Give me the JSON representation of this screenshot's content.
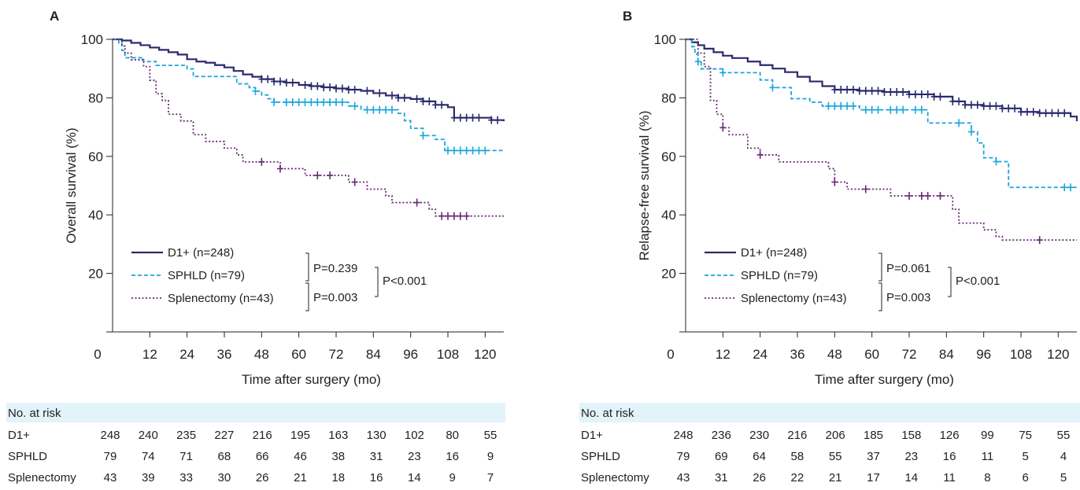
{
  "chart_data": [
    {
      "type": "line",
      "panel_label": "A",
      "xlabel": "Time after surgery (mo)",
      "ylabel": "Overall survival (%)",
      "xlim": [
        0,
        126
      ],
      "ylim": [
        0,
        100
      ],
      "x_ticks": [
        "0",
        "12",
        "24",
        "36",
        "48",
        "60",
        "72",
        "84",
        "96",
        "108",
        "120"
      ],
      "y_ticks": [
        "20",
        "40",
        "60",
        "80",
        "100"
      ],
      "y_tick_values": [
        20,
        40,
        60,
        80,
        100
      ],
      "series": [
        {
          "name": "D1+ (n=248)",
          "color": "#2b2a6e",
          "style": "solid",
          "points": [
            [
              0,
              100
            ],
            [
              3,
              99.6
            ],
            [
              6,
              98.8
            ],
            [
              9,
              98
            ],
            [
              12,
              97.2
            ],
            [
              15,
              96.4
            ],
            [
              18,
              95.6
            ],
            [
              21,
              94.8
            ],
            [
              24,
              93.2
            ],
            [
              27,
              92.4
            ],
            [
              30,
              92
            ],
            [
              33,
              91.2
            ],
            [
              36,
              90.4
            ],
            [
              39,
              89.2
            ],
            [
              42,
              88
            ],
            [
              45,
              87.2
            ],
            [
              48,
              86.4
            ],
            [
              52,
              85.6
            ],
            [
              56,
              85.2
            ],
            [
              60,
              84.4
            ],
            [
              64,
              84
            ],
            [
              68,
              83.6
            ],
            [
              72,
              83.2
            ],
            [
              76,
              82.8
            ],
            [
              80,
              82.4
            ],
            [
              84,
              81.6
            ],
            [
              88,
              80.8
            ],
            [
              92,
              80
            ],
            [
              96,
              79.6
            ],
            [
              100,
              78.8
            ],
            [
              104,
              77.6
            ],
            [
              108,
              76.8
            ],
            [
              110,
              73.2
            ],
            [
              120,
              73.2
            ],
            [
              122,
              72.4
            ],
            [
              126,
              72
            ]
          ],
          "censor_x": [
            48,
            50,
            52,
            54,
            56,
            58,
            62,
            64,
            66,
            68,
            70,
            72,
            74,
            76,
            78,
            82,
            86,
            90,
            92,
            94,
            98,
            100,
            102,
            104,
            106,
            110,
            112,
            114,
            116,
            118,
            122,
            124
          ]
        },
        {
          "name": "SPHLD (n=79)",
          "color": "#1aa5dc",
          "style": "dashed",
          "points": [
            [
              0,
              100
            ],
            [
              2,
              98.7
            ],
            [
              3,
              96.2
            ],
            [
              4,
              93.7
            ],
            [
              10,
              92.4
            ],
            [
              14,
              91.1
            ],
            [
              24,
              89.9
            ],
            [
              26,
              87.3
            ],
            [
              40,
              84.8
            ],
            [
              44,
              83.5
            ],
            [
              46,
              82.3
            ],
            [
              48,
              81
            ],
            [
              50,
              79.7
            ],
            [
              52,
              78.5
            ],
            [
              76,
              77.2
            ],
            [
              80,
              75.9
            ],
            [
              90,
              75.9
            ],
            [
              92,
              74.7
            ],
            [
              94,
              72.2
            ],
            [
              96,
              69.6
            ],
            [
              100,
              67.1
            ],
            [
              104,
              65.8
            ],
            [
              107,
              62
            ],
            [
              126,
              62
            ]
          ],
          "censor_x": [
            46,
            52,
            56,
            58,
            60,
            62,
            64,
            66,
            68,
            70,
            72,
            74,
            78,
            82,
            84,
            86,
            88,
            90,
            100,
            108,
            110,
            112,
            114,
            116,
            118,
            120
          ]
        },
        {
          "name": "Splenectomy (n=43)",
          "color": "#6a2a76",
          "style": "dotted",
          "points": [
            [
              0,
              100
            ],
            [
              3,
              97.7
            ],
            [
              4,
              95.3
            ],
            [
              6,
              93
            ],
            [
              10,
              90.7
            ],
            [
              12,
              86
            ],
            [
              14,
              81.4
            ],
            [
              16,
              79.1
            ],
            [
              18,
              74.4
            ],
            [
              22,
              72.1
            ],
            [
              26,
              67.4
            ],
            [
              30,
              65.1
            ],
            [
              36,
              62.8
            ],
            [
              40,
              60.5
            ],
            [
              42,
              58.1
            ],
            [
              54,
              55.8
            ],
            [
              62,
              53.5
            ],
            [
              76,
              51.2
            ],
            [
              82,
              48.8
            ],
            [
              88,
              46.5
            ],
            [
              90,
              44.2
            ],
            [
              96,
              44.2
            ],
            [
              102,
              41.9
            ],
            [
              104,
              39.6
            ],
            [
              126,
              39.6
            ]
          ],
          "censor_x": [
            48,
            54,
            66,
            70,
            78,
            98,
            106,
            108,
            110,
            112,
            114
          ]
        }
      ],
      "p_values": {
        "d1_vs_sphld": "P=0.239",
        "sphld_vs_splen": "P=0.003",
        "overall": "P<0.001"
      },
      "risk_table": {
        "header": "No. at risk",
        "rows": [
          {
            "label": "D1+",
            "values": [
              "248",
              "240",
              "235",
              "227",
              "216",
              "195",
              "163",
              "130",
              "102",
              "80",
              "55"
            ]
          },
          {
            "label": "SPHLD",
            "values": [
              "79",
              "74",
              "71",
              "68",
              "66",
              "46",
              "38",
              "31",
              "23",
              "16",
              "9"
            ]
          },
          {
            "label": "Splenectomy",
            "values": [
              "43",
              "39",
              "33",
              "30",
              "26",
              "21",
              "18",
              "16",
              "14",
              "9",
              "7"
            ]
          }
        ]
      }
    },
    {
      "type": "line",
      "panel_label": "B",
      "xlabel": "Time after surgery (mo)",
      "ylabel": "Relapse-free survival (%)",
      "xlim": [
        0,
        126
      ],
      "ylim": [
        0,
        100
      ],
      "x_ticks": [
        "0",
        "12",
        "24",
        "36",
        "48",
        "60",
        "72",
        "84",
        "96",
        "108",
        "120"
      ],
      "y_ticks": [
        "20",
        "40",
        "60",
        "80",
        "100"
      ],
      "y_tick_values": [
        20,
        40,
        60,
        80,
        100
      ],
      "series": [
        {
          "name": "D1+ (n=248)",
          "color": "#2b2a6e",
          "style": "solid",
          "points": [
            [
              0,
              100
            ],
            [
              2,
              99
            ],
            [
              4,
              98
            ],
            [
              6,
              96.8
            ],
            [
              9,
              95.6
            ],
            [
              12,
              94.4
            ],
            [
              15,
              93.6
            ],
            [
              20,
              92.4
            ],
            [
              24,
              91.2
            ],
            [
              28,
              90
            ],
            [
              32,
              88.8
            ],
            [
              36,
              87.2
            ],
            [
              40,
              85.6
            ],
            [
              44,
              84
            ],
            [
              48,
              82.8
            ],
            [
              56,
              82.4
            ],
            [
              64,
              82
            ],
            [
              72,
              81.2
            ],
            [
              80,
              80.4
            ],
            [
              86,
              78.8
            ],
            [
              90,
              77.6
            ],
            [
              96,
              77.2
            ],
            [
              102,
              76.4
            ],
            [
              108,
              75.2
            ],
            [
              114,
              74.8
            ],
            [
              120,
              74.8
            ],
            [
              124,
              73.6
            ],
            [
              126,
              72
            ]
          ],
          "censor_x": [
            48,
            50,
            52,
            54,
            56,
            58,
            60,
            62,
            64,
            66,
            68,
            70,
            72,
            74,
            76,
            78,
            80,
            82,
            86,
            88,
            90,
            92,
            94,
            96,
            98,
            100,
            102,
            104,
            106,
            108,
            110,
            112,
            114,
            116,
            118,
            120,
            122
          ]
        },
        {
          "name": "SPHLD (n=79)",
          "color": "#1aa5dc",
          "style": "dashed",
          "points": [
            [
              0,
              100
            ],
            [
              2,
              97.5
            ],
            [
              3,
              94.9
            ],
            [
              4,
              92.4
            ],
            [
              5,
              89.9
            ],
            [
              12,
              88.6
            ],
            [
              24,
              86.1
            ],
            [
              28,
              83.5
            ],
            [
              34,
              79.7
            ],
            [
              40,
              78.5
            ],
            [
              44,
              77.2
            ],
            [
              56,
              75.9
            ],
            [
              62,
              75.9
            ],
            [
              72,
              75.9
            ],
            [
              78,
              71.4
            ],
            [
              90,
              71.4
            ],
            [
              92,
              68.4
            ],
            [
              94,
              64.6
            ],
            [
              96,
              59.5
            ],
            [
              100,
              58.2
            ],
            [
              104,
              49.4
            ],
            [
              126,
              49.4
            ]
          ],
          "censor_x": [
            4,
            12,
            28,
            46,
            48,
            50,
            52,
            54,
            58,
            60,
            62,
            66,
            68,
            70,
            74,
            76,
            88,
            92,
            100,
            122,
            124
          ]
        },
        {
          "name": "Splenectomy (n=43)",
          "color": "#6a2a76",
          "style": "dotted",
          "points": [
            [
              0,
              100
            ],
            [
              4,
              95.3
            ],
            [
              6,
              90.7
            ],
            [
              8,
              79.1
            ],
            [
              10,
              74.4
            ],
            [
              12,
              69.8
            ],
            [
              14,
              67.4
            ],
            [
              20,
              62.8
            ],
            [
              24,
              60.5
            ],
            [
              30,
              58.1
            ],
            [
              46,
              55.8
            ],
            [
              48,
              51.2
            ],
            [
              52,
              48.8
            ],
            [
              66,
              46.5
            ],
            [
              84,
              46.5
            ],
            [
              86,
              41.9
            ],
            [
              88,
              37.2
            ],
            [
              96,
              34.9
            ],
            [
              100,
              32.6
            ],
            [
              102,
              31.4
            ],
            [
              126,
              31.4
            ]
          ],
          "censor_x": [
            12,
            24,
            48,
            58,
            72,
            76,
            78,
            82,
            114
          ]
        }
      ],
      "p_values": {
        "d1_vs_sphld": "P=0.061",
        "sphld_vs_splen": "P=0.003",
        "overall": "P<0.001"
      },
      "risk_table": {
        "header": "No. at risk",
        "rows": [
          {
            "label": "D1+",
            "values": [
              "248",
              "236",
              "230",
              "216",
              "206",
              "185",
              "158",
              "126",
              "99",
              "75",
              "55"
            ]
          },
          {
            "label": "SPHLD",
            "values": [
              "79",
              "69",
              "64",
              "58",
              "55",
              "37",
              "23",
              "16",
              "11",
              "5",
              "4"
            ]
          },
          {
            "label": "Splenectomy",
            "values": [
              "43",
              "31",
              "26",
              "22",
              "21",
              "17",
              "14",
              "11",
              "8",
              "6",
              "5"
            ]
          }
        ]
      }
    }
  ],
  "colors": {
    "risk_header_bg": "#e2f3fa",
    "axis": "#222222"
  }
}
